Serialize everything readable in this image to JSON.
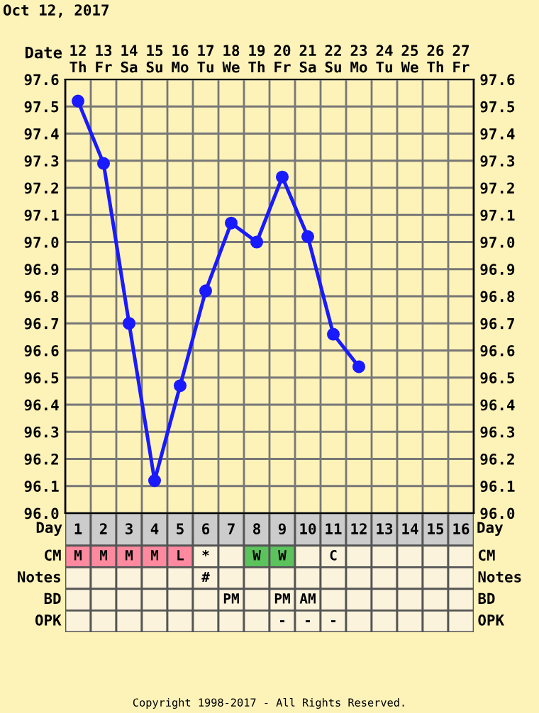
{
  "chart_data": [
    {
      "type": "line",
      "title": "Oct 12, 2017",
      "xlabel": "Day",
      "x2label": "Date",
      "x": [
        1,
        2,
        3,
        4,
        5,
        6,
        7,
        8,
        9,
        10,
        11,
        12
      ],
      "xlim": [
        0.5,
        16.5
      ],
      "xticks": [
        1,
        2,
        3,
        4,
        5,
        6,
        7,
        8,
        9,
        10,
        11,
        12,
        13,
        14,
        15,
        16
      ],
      "x2lim": [
        "2017-10-11T12:00",
        "2017-10-27T12:00"
      ],
      "x2ticks": [
        {
          "value": "2017-10-12",
          "label": "12\nTh"
        },
        {
          "value": "2017-10-13",
          "label": "13\nFr"
        },
        {
          "value": "2017-10-14",
          "label": "14\nSa"
        },
        {
          "value": "2017-10-15",
          "label": "15\nSu"
        },
        {
          "value": "2017-10-16",
          "label": "16\nMo"
        },
        {
          "value": "2017-10-17",
          "label": "17\nTu"
        },
        {
          "value": "2017-10-18",
          "label": "18\nWe"
        },
        {
          "value": "2017-10-19",
          "label": "19\nTh"
        },
        {
          "value": "2017-10-20",
          "label": "20\nFr"
        },
        {
          "value": "2017-10-21",
          "label": "21\nSa"
        },
        {
          "value": "2017-10-22",
          "label": "22\nSu"
        },
        {
          "value": "2017-10-23",
          "label": "23\nMo"
        },
        {
          "value": "2017-10-24",
          "label": "24\nTu"
        },
        {
          "value": "2017-10-25",
          "label": "25\nWe"
        },
        {
          "value": "2017-10-26",
          "label": "26\nTh"
        },
        {
          "value": "2017-10-27",
          "label": "27\nFr"
        }
      ],
      "series": [
        {
          "color": "#1a1aff",
          "values": [
            97.52,
            97.29,
            96.7,
            96.12,
            96.47,
            96.82,
            97.07,
            97.0,
            97.24,
            97.02,
            96.66,
            96.54
          ]
        }
      ],
      "ylim": [
        96.0,
        97.6
      ],
      "yticks": [
        {
          "value": 96.0,
          "label": "96.0"
        },
        {
          "value": 96.1,
          "label": "96.1"
        },
        {
          "value": 96.2,
          "label": "96.2"
        },
        {
          "value": 96.3,
          "label": "96.3"
        },
        {
          "value": 96.4,
          "label": "96.4"
        },
        {
          "value": 96.5,
          "label": "96.5"
        },
        {
          "value": 96.6,
          "label": "96.6"
        },
        {
          "value": 96.7,
          "label": "96.7"
        },
        {
          "value": 96.8,
          "label": "96.8"
        },
        {
          "value": 96.9,
          "label": "96.9"
        },
        {
          "value": 97.0,
          "label": "97.0"
        },
        {
          "value": 97.1,
          "label": "97.1"
        },
        {
          "value": 97.2,
          "label": "97.2"
        },
        {
          "value": 97.3,
          "label": "97.3"
        },
        {
          "value": 97.4,
          "label": "97.4"
        },
        {
          "value": 97.5,
          "label": "97.5"
        },
        {
          "value": 97.6,
          "label": "97.6"
        }
      ],
      "y2lim": [
        96.0,
        97.6
      ],
      "y2ticks": [
        {
          "value": 96.0,
          "label": "96.0"
        },
        {
          "value": 96.1,
          "label": "96.1"
        },
        {
          "value": 96.2,
          "label": "96.2"
        },
        {
          "value": 96.3,
          "label": "96.3"
        },
        {
          "value": 96.4,
          "label": "96.4"
        },
        {
          "value": 96.5,
          "label": "96.5"
        },
        {
          "value": 96.6,
          "label": "96.6"
        },
        {
          "value": 96.7,
          "label": "96.7"
        },
        {
          "value": 96.8,
          "label": "96.8"
        },
        {
          "value": 96.9,
          "label": "96.9"
        },
        {
          "value": 97.0,
          "label": "97.0"
        },
        {
          "value": 97.1,
          "label": "97.1"
        },
        {
          "value": 97.2,
          "label": "97.2"
        },
        {
          "value": 97.3,
          "label": "97.3"
        },
        {
          "value": 97.4,
          "label": "97.4"
        },
        {
          "value": 97.5,
          "label": "97.5"
        },
        {
          "value": 97.6,
          "label": "97.6"
        }
      ],
      "grid": true,
      "marker": "circle",
      "line_style": "solid"
    },
    {
      "type": "other",
      "y_categories": [
        "CM",
        "Notes",
        "BD",
        "OPK"
      ],
      "y2_categories": [
        "CM",
        "Notes",
        "BD",
        "OPK"
      ],
      "cell_labels": [
        [
          "M",
          "M",
          "M",
          "M",
          "L",
          "*",
          null,
          "W",
          "W",
          null,
          "C",
          null,
          null,
          null,
          null,
          null
        ],
        [
          null,
          null,
          null,
          null,
          null,
          "#",
          null,
          null,
          null,
          null,
          null,
          null,
          null,
          null,
          null,
          null
        ],
        [
          null,
          null,
          null,
          null,
          null,
          null,
          "PM",
          null,
          "PM",
          "AM",
          null,
          null,
          null,
          null,
          null,
          null
        ],
        [
          null,
          null,
          null,
          null,
          null,
          null,
          null,
          null,
          "-",
          "-",
          "-",
          null,
          null,
          null,
          null,
          null
        ]
      ],
      "colors": [
        [
          "#ff8aa0",
          "#ff8aa0",
          "#ff8aa0",
          "#ff8aa0",
          "#ff8aa0",
          null,
          null,
          "#5cc25c",
          "#5cc25c",
          null,
          null,
          null,
          null,
          null,
          null,
          null
        ],
        [
          null,
          null,
          null,
          null,
          null,
          null,
          null,
          null,
          null,
          null,
          null,
          null,
          null,
          null,
          null,
          null
        ],
        [
          null,
          null,
          null,
          null,
          null,
          null,
          null,
          null,
          null,
          null,
          null,
          null,
          null,
          null,
          null,
          null
        ],
        [
          null,
          null,
          null,
          null,
          null,
          null,
          null,
          null,
          null,
          null,
          null,
          null,
          null,
          null,
          null,
          null
        ]
      ],
      "annotations": [
        "Copyright 1998-2017 - All Rights Reserved."
      ]
    }
  ]
}
